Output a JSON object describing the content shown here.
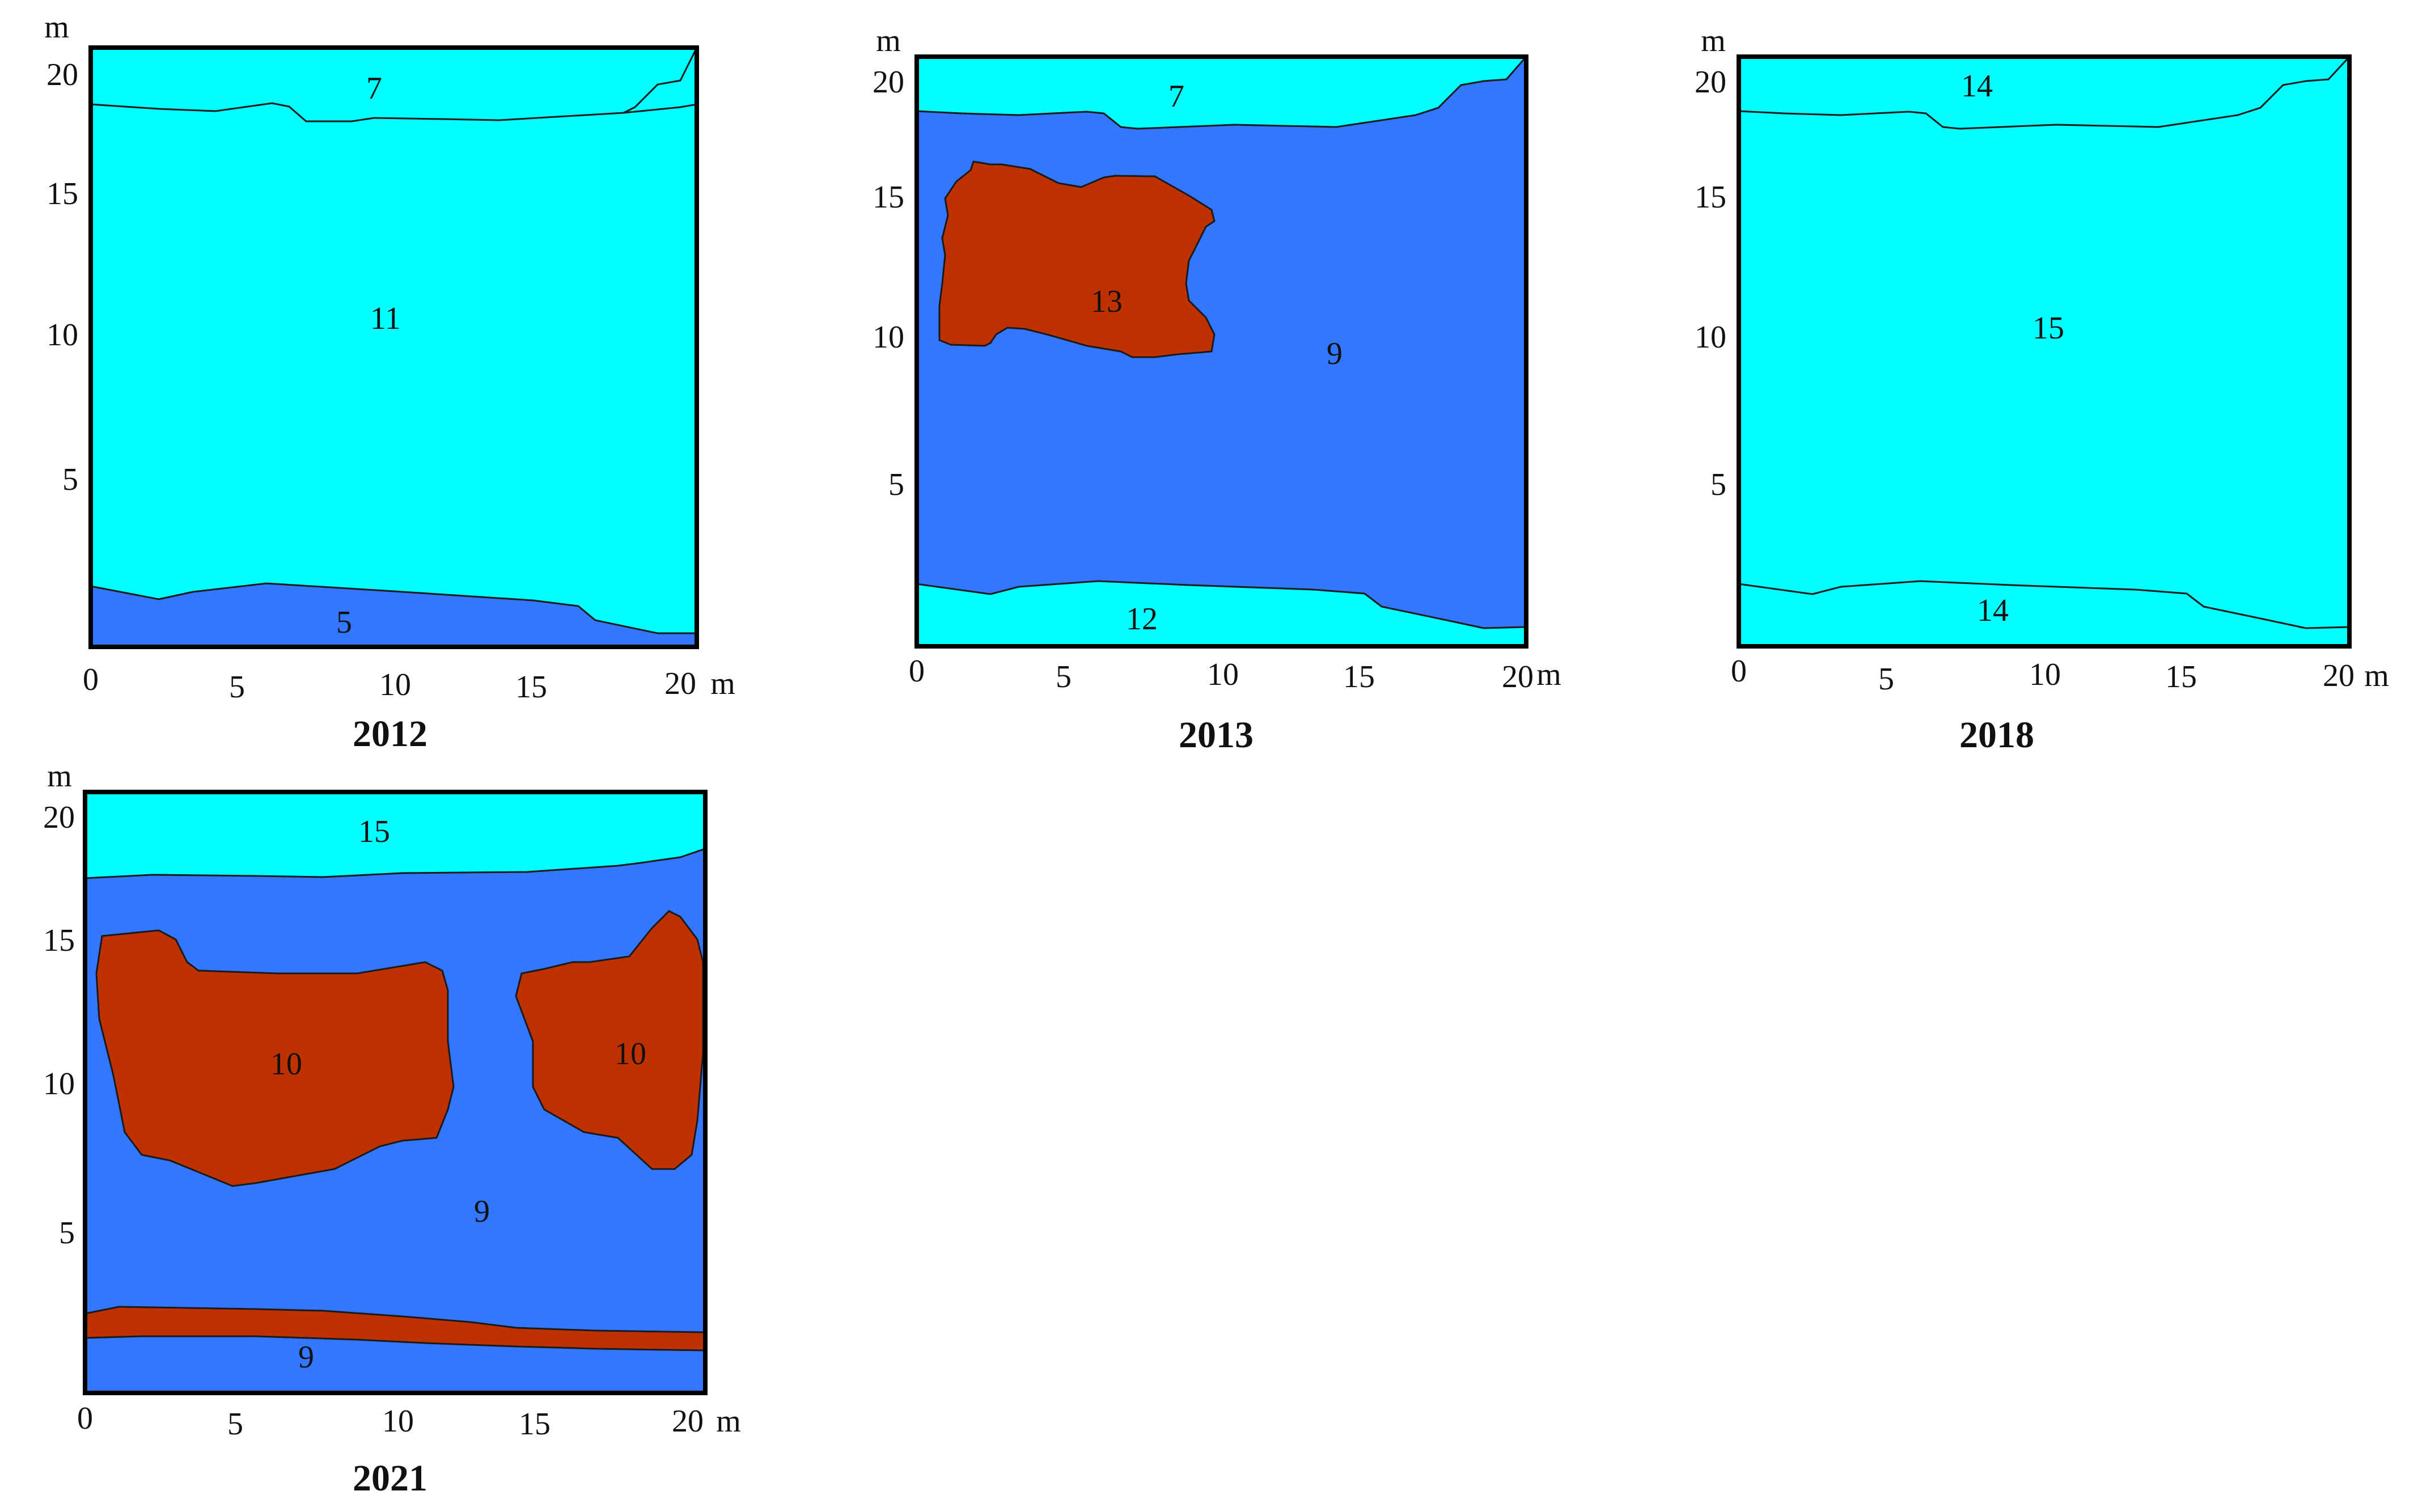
{
  "colors": {
    "light_cyan": "#00FFFF",
    "blue": "#3377FF",
    "rust": "#BE3100",
    "frame": "#000000"
  },
  "axis_unit": "m",
  "x_tick_labels": [
    "0",
    "5",
    "10",
    "15",
    "20"
  ],
  "y_tick_labels": [
    "5",
    "10",
    "15",
    "20"
  ],
  "panels": [
    {
      "year": "2012",
      "regions": [
        {
          "id": "top",
          "label": "7",
          "color": "light_cyan"
        },
        {
          "id": "middle",
          "label": "11",
          "color": "light_cyan"
        },
        {
          "id": "bottom",
          "label": "5",
          "color": "blue"
        }
      ]
    },
    {
      "year": "2013",
      "regions": [
        {
          "id": "top",
          "label": "7",
          "color": "light_cyan"
        },
        {
          "id": "middle",
          "label": "9",
          "color": "blue"
        },
        {
          "id": "patch",
          "label": "13",
          "color": "rust"
        },
        {
          "id": "bottom",
          "label": "12",
          "color": "light_cyan"
        }
      ]
    },
    {
      "year": "2018",
      "regions": [
        {
          "id": "top",
          "label": "14",
          "color": "light_cyan"
        },
        {
          "id": "middle",
          "label": "15",
          "color": "light_cyan"
        },
        {
          "id": "bottom",
          "label": "14",
          "color": "light_cyan"
        }
      ]
    },
    {
      "year": "2021",
      "regions": [
        {
          "id": "top",
          "label": "15",
          "color": "light_cyan"
        },
        {
          "id": "middle",
          "label": "9",
          "color": "blue"
        },
        {
          "id": "patch_left",
          "label": "10",
          "color": "rust"
        },
        {
          "id": "patch_right",
          "label": "10",
          "color": "rust"
        },
        {
          "id": "strip",
          "label": "",
          "color": "rust"
        },
        {
          "id": "bottom",
          "label": "9",
          "color": "blue"
        }
      ]
    }
  ]
}
